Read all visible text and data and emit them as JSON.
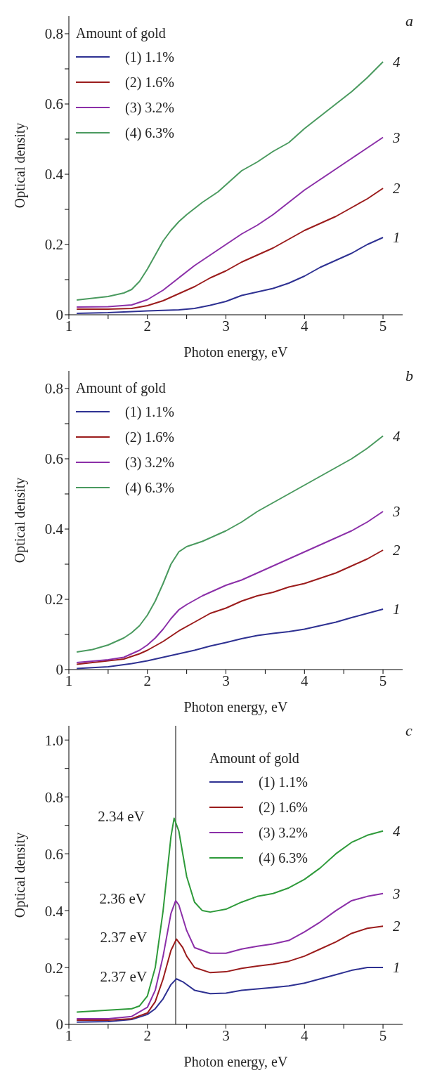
{
  "chart_data": [
    {
      "type": "line",
      "title": "a",
      "xlabel": "Photon energy, eV",
      "ylabel": "Optical density",
      "legend_title": "Amount of gold",
      "legend": "top left",
      "xlim": [
        1,
        5.25
      ],
      "xticks": [
        1,
        {
          "value": 1.5,
          "label": null
        },
        2,
        {
          "value": 2.5,
          "label": null
        },
        3,
        {
          "value": 3.5,
          "label": null
        },
        4,
        {
          "value": 4.5,
          "label": null
        },
        5
      ],
      "ylim": [
        0,
        0.85
      ],
      "yticks": [
        0,
        {
          "value": 0.1,
          "label": null
        },
        0.2,
        {
          "value": 0.3,
          "label": null
        },
        0.4,
        {
          "value": 0.5,
          "label": null
        },
        0.6,
        {
          "value": 0.7,
          "label": null
        },
        0.8
      ],
      "series": [
        {
          "name": "(1) 1.1%",
          "color": "#2e3192",
          "x": [
            1.1,
            1.5,
            2.0,
            2.4,
            2.6,
            2.8,
            3.0,
            3.2,
            3.4,
            3.6,
            3.8,
            4.0,
            4.2,
            4.4,
            4.6,
            4.8,
            5.0
          ],
          "values": [
            0.004,
            0.006,
            0.011,
            0.014,
            0.018,
            0.027,
            0.038,
            0.055,
            0.065,
            0.075,
            0.09,
            0.11,
            0.135,
            0.155,
            0.175,
            0.2,
            0.22
          ]
        },
        {
          "name": "(2) 1.6%",
          "color": "#9b1c1c",
          "x": [
            1.1,
            1.5,
            1.8,
            2.0,
            2.2,
            2.4,
            2.6,
            2.8,
            3.0,
            3.2,
            3.4,
            3.6,
            3.8,
            4.0,
            4.2,
            4.4,
            4.6,
            4.8,
            5.0
          ],
          "values": [
            0.016,
            0.016,
            0.018,
            0.026,
            0.04,
            0.06,
            0.08,
            0.105,
            0.125,
            0.15,
            0.17,
            0.19,
            0.215,
            0.24,
            0.26,
            0.28,
            0.305,
            0.33,
            0.36
          ]
        },
        {
          "name": "(3) 3.2%",
          "color": "#8b2fa8",
          "x": [
            1.1,
            1.5,
            1.8,
            2.0,
            2.2,
            2.4,
            2.6,
            2.8,
            3.0,
            3.2,
            3.4,
            3.6,
            3.8,
            4.0,
            4.2,
            4.4,
            4.6,
            4.8,
            5.0
          ],
          "values": [
            0.022,
            0.023,
            0.028,
            0.043,
            0.07,
            0.105,
            0.14,
            0.17,
            0.2,
            0.23,
            0.255,
            0.285,
            0.32,
            0.355,
            0.385,
            0.415,
            0.445,
            0.475,
            0.505
          ]
        },
        {
          "name": "(4) 6.3%",
          "color": "#4a9a5f",
          "x": [
            1.1,
            1.3,
            1.5,
            1.7,
            1.8,
            1.9,
            2.0,
            2.1,
            2.2,
            2.3,
            2.4,
            2.5,
            2.7,
            2.9,
            3.0,
            3.2,
            3.4,
            3.6,
            3.8,
            4.0,
            4.2,
            4.4,
            4.6,
            4.8,
            5.0
          ],
          "values": [
            0.042,
            0.047,
            0.052,
            0.062,
            0.072,
            0.095,
            0.13,
            0.17,
            0.21,
            0.24,
            0.265,
            0.285,
            0.32,
            0.35,
            0.37,
            0.41,
            0.435,
            0.465,
            0.49,
            0.53,
            0.565,
            0.6,
            0.635,
            0.675,
            0.72
          ]
        }
      ],
      "annotations": [
        {
          "text": "1",
          "x": 5,
          "y": 0.22
        },
        {
          "text": "2",
          "x": 5,
          "y": 0.36
        },
        {
          "text": "3",
          "x": 5,
          "y": 0.505
        },
        {
          "text": "4",
          "x": 5,
          "y": 0.72
        }
      ]
    },
    {
      "type": "line",
      "title": "b",
      "xlabel": "Photon energy, eV",
      "ylabel": "Optical density",
      "legend_title": "Amount of gold",
      "legend": "top left",
      "xlim": [
        1,
        5.25
      ],
      "xticks": [
        1,
        {
          "value": 1.5,
          "label": null
        },
        2,
        {
          "value": 2.5,
          "label": null
        },
        3,
        {
          "value": 3.5,
          "label": null
        },
        4,
        {
          "value": 4.5,
          "label": null
        },
        5
      ],
      "ylim": [
        0,
        0.85
      ],
      "yticks": [
        0,
        {
          "value": 0.1,
          "label": null
        },
        0.2,
        {
          "value": 0.3,
          "label": null
        },
        0.4,
        {
          "value": 0.5,
          "label": null
        },
        0.6,
        {
          "value": 0.7,
          "label": null
        },
        0.8
      ],
      "series": [
        {
          "name": "(1) 1.1%",
          "color": "#2e3192",
          "x": [
            1.1,
            1.5,
            1.8,
            2.0,
            2.2,
            2.4,
            2.6,
            2.8,
            3.0,
            3.2,
            3.4,
            3.6,
            3.8,
            4.0,
            4.2,
            4.4,
            4.6,
            4.8,
            5.0
          ],
          "values": [
            0.003,
            0.008,
            0.017,
            0.025,
            0.035,
            0.045,
            0.055,
            0.067,
            0.077,
            0.088,
            0.097,
            0.103,
            0.108,
            0.115,
            0.125,
            0.135,
            0.148,
            0.16,
            0.172
          ]
        },
        {
          "name": "(2) 1.6%",
          "color": "#9b1c1c",
          "x": [
            1.1,
            1.5,
            1.7,
            1.9,
            2.0,
            2.2,
            2.4,
            2.6,
            2.8,
            3.0,
            3.2,
            3.4,
            3.6,
            3.8,
            4.0,
            4.2,
            4.4,
            4.6,
            4.8,
            5.0
          ],
          "values": [
            0.015,
            0.025,
            0.03,
            0.045,
            0.055,
            0.08,
            0.11,
            0.135,
            0.16,
            0.175,
            0.195,
            0.21,
            0.22,
            0.235,
            0.245,
            0.26,
            0.275,
            0.295,
            0.315,
            0.34
          ]
        },
        {
          "name": "(3) 3.2%",
          "color": "#8b2fa8",
          "x": [
            1.1,
            1.5,
            1.7,
            1.9,
            2.0,
            2.1,
            2.2,
            2.3,
            2.4,
            2.5,
            2.7,
            2.9,
            3.0,
            3.2,
            3.4,
            3.6,
            3.8,
            4.0,
            4.2,
            4.4,
            4.6,
            4.8,
            5.0
          ],
          "values": [
            0.02,
            0.028,
            0.035,
            0.055,
            0.07,
            0.09,
            0.115,
            0.145,
            0.17,
            0.185,
            0.21,
            0.23,
            0.24,
            0.255,
            0.275,
            0.295,
            0.315,
            0.335,
            0.355,
            0.375,
            0.395,
            0.42,
            0.45
          ]
        },
        {
          "name": "(4) 6.3%",
          "color": "#4a9a5f",
          "x": [
            1.1,
            1.3,
            1.5,
            1.7,
            1.8,
            1.9,
            2.0,
            2.1,
            2.2,
            2.3,
            2.4,
            2.5,
            2.7,
            2.9,
            3.0,
            3.2,
            3.4,
            3.6,
            3.8,
            4.0,
            4.2,
            4.4,
            4.6,
            4.8,
            5.0
          ],
          "values": [
            0.05,
            0.057,
            0.07,
            0.09,
            0.105,
            0.125,
            0.155,
            0.195,
            0.245,
            0.3,
            0.335,
            0.35,
            0.365,
            0.385,
            0.395,
            0.42,
            0.45,
            0.475,
            0.5,
            0.525,
            0.55,
            0.575,
            0.6,
            0.63,
            0.665
          ]
        }
      ],
      "annotations": [
        {
          "text": "1",
          "x": 5,
          "y": 0.172
        },
        {
          "text": "2",
          "x": 5,
          "y": 0.34
        },
        {
          "text": "3",
          "x": 5,
          "y": 0.45
        },
        {
          "text": "4",
          "x": 5,
          "y": 0.665
        }
      ]
    },
    {
      "type": "line",
      "title": "c",
      "xlabel": "Photon energy, eV",
      "ylabel": "Optical density",
      "legend_title": "Amount of gold",
      "legend": "top right",
      "xlim": [
        1,
        5.25
      ],
      "xticks": [
        1,
        {
          "value": 1.5,
          "label": null
        },
        2,
        {
          "value": 2.5,
          "label": null
        },
        3,
        {
          "value": 3.5,
          "label": null
        },
        4,
        {
          "value": 4.5,
          "label": null
        },
        5
      ],
      "ylim": [
        0,
        1.05
      ],
      "yticks": [
        0,
        {
          "value": 0.1,
          "label": null
        },
        0.2,
        {
          "value": 0.3,
          "label": null
        },
        0.4,
        {
          "value": 0.5,
          "label": null
        },
        0.6,
        {
          "value": 0.7,
          "label": null
        },
        0.8,
        {
          "value": 0.9,
          "label": null
        },
        {
          "value": 1,
          "label": "1.0"
        }
      ],
      "series": [
        {
          "name": "(1) 1.1%",
          "color": "#2e3192",
          "x": [
            1.1,
            1.5,
            1.8,
            2.0,
            2.1,
            2.2,
            2.3,
            2.37,
            2.45,
            2.6,
            2.8,
            3.0,
            3.2,
            3.4,
            3.6,
            3.8,
            4.0,
            4.2,
            4.4,
            4.6,
            4.8,
            5.0
          ],
          "values": [
            0.008,
            0.01,
            0.017,
            0.035,
            0.055,
            0.09,
            0.14,
            0.16,
            0.15,
            0.12,
            0.108,
            0.11,
            0.12,
            0.125,
            0.13,
            0.135,
            0.145,
            0.16,
            0.175,
            0.19,
            0.2,
            0.2
          ]
        },
        {
          "name": "(2) 1.6%",
          "color": "#9b1c1c",
          "x": [
            1.1,
            1.5,
            1.8,
            2.0,
            2.1,
            2.2,
            2.3,
            2.37,
            2.45,
            2.5,
            2.6,
            2.8,
            3.0,
            3.2,
            3.4,
            3.6,
            3.8,
            4.0,
            4.2,
            4.4,
            4.6,
            4.8,
            5.0
          ],
          "values": [
            0.015,
            0.015,
            0.02,
            0.04,
            0.08,
            0.16,
            0.26,
            0.3,
            0.27,
            0.24,
            0.2,
            0.182,
            0.185,
            0.197,
            0.205,
            0.212,
            0.222,
            0.24,
            0.265,
            0.29,
            0.32,
            0.338,
            0.345
          ]
        },
        {
          "name": "(3) 3.2%",
          "color": "#8b2fa8",
          "x": [
            1.1,
            1.5,
            1.8,
            2.0,
            2.1,
            2.2,
            2.3,
            2.36,
            2.4,
            2.5,
            2.6,
            2.8,
            3.0,
            3.2,
            3.4,
            3.6,
            3.8,
            4.0,
            4.2,
            4.4,
            4.6,
            4.8,
            5.0
          ],
          "values": [
            0.02,
            0.02,
            0.028,
            0.06,
            0.12,
            0.24,
            0.39,
            0.435,
            0.42,
            0.33,
            0.27,
            0.25,
            0.25,
            0.265,
            0.275,
            0.283,
            0.295,
            0.325,
            0.36,
            0.4,
            0.435,
            0.45,
            0.46
          ]
        },
        {
          "name": "(4) 6.3%",
          "color": "#2e9a3a",
          "x": [
            1.1,
            1.5,
            1.8,
            1.9,
            2.0,
            2.1,
            2.2,
            2.3,
            2.34,
            2.4,
            2.5,
            2.6,
            2.7,
            2.8,
            3.0,
            3.2,
            3.4,
            3.6,
            3.8,
            4.0,
            4.2,
            4.4,
            4.6,
            4.8,
            5.0
          ],
          "values": [
            0.043,
            0.05,
            0.055,
            0.065,
            0.1,
            0.2,
            0.4,
            0.66,
            0.725,
            0.68,
            0.52,
            0.43,
            0.4,
            0.395,
            0.405,
            0.43,
            0.45,
            0.46,
            0.48,
            0.51,
            0.55,
            0.6,
            0.64,
            0.665,
            0.68
          ]
        }
      ],
      "ref_lines": [
        {
          "axis": "x",
          "value": 2.36,
          "color": "#000000"
        }
      ],
      "annotations": [
        {
          "text": "2.34 eV",
          "x": 2.34,
          "y": 0.725
        },
        {
          "text": "2.36 eV",
          "x": 2.36,
          "y": 0.435
        },
        {
          "text": "2.37 eV",
          "x": 2.37,
          "y": 0.3
        },
        {
          "text": "2.37 eV",
          "x": 2.37,
          "y": 0.16
        },
        {
          "text": "1",
          "x": 5,
          "y": 0.2
        },
        {
          "text": "2",
          "x": 5,
          "y": 0.345
        },
        {
          "text": "3",
          "x": 5,
          "y": 0.46
        },
        {
          "text": "4",
          "x": 5,
          "y": 0.68
        }
      ]
    }
  ]
}
